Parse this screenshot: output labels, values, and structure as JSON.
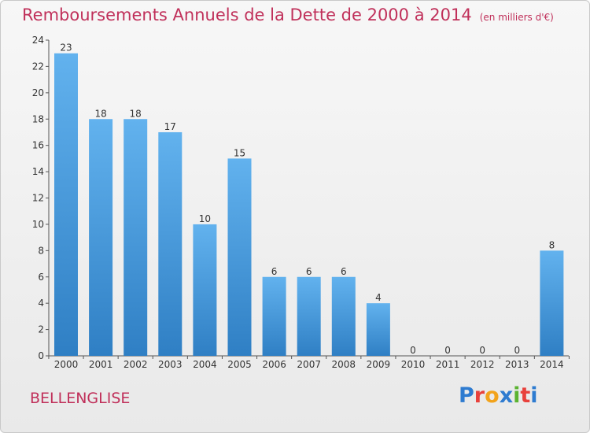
{
  "title": "Remboursements Annuels de la Dette de 2000 à 2014",
  "unit_label": "(en milliers d'€)",
  "commune": "BELLENGLISE",
  "logo": {
    "letters": [
      "P",
      "r",
      "o",
      "x",
      "i",
      "t",
      "i"
    ],
    "colors": [
      "#2e7bd0",
      "#e8413c",
      "#f2a31b",
      "#2e7bd0",
      "#5bb331",
      "#e8413c",
      "#2e7bd0"
    ]
  },
  "colors": {
    "title": "#c0305a",
    "bar_top": "#62b2ee",
    "bar_bottom": "#2f7fc4"
  },
  "chart_data": {
    "type": "bar",
    "title": "Remboursements Annuels de la Dette de 2000 à 2014",
    "categories": [
      "2000",
      "2001",
      "2002",
      "2003",
      "2004",
      "2005",
      "2006",
      "2007",
      "2008",
      "2009",
      "2010",
      "2011",
      "2012",
      "2013",
      "2014"
    ],
    "values": [
      23,
      18,
      18,
      17,
      10,
      15,
      6,
      6,
      6,
      4,
      0,
      0,
      0,
      0,
      8
    ],
    "ylim": [
      0,
      24
    ],
    "yticks": [
      0,
      2,
      4,
      6,
      8,
      10,
      12,
      14,
      16,
      18,
      20,
      22,
      24
    ],
    "xlabel": "",
    "ylabel": "",
    "grid": false,
    "data_labels": true
  }
}
